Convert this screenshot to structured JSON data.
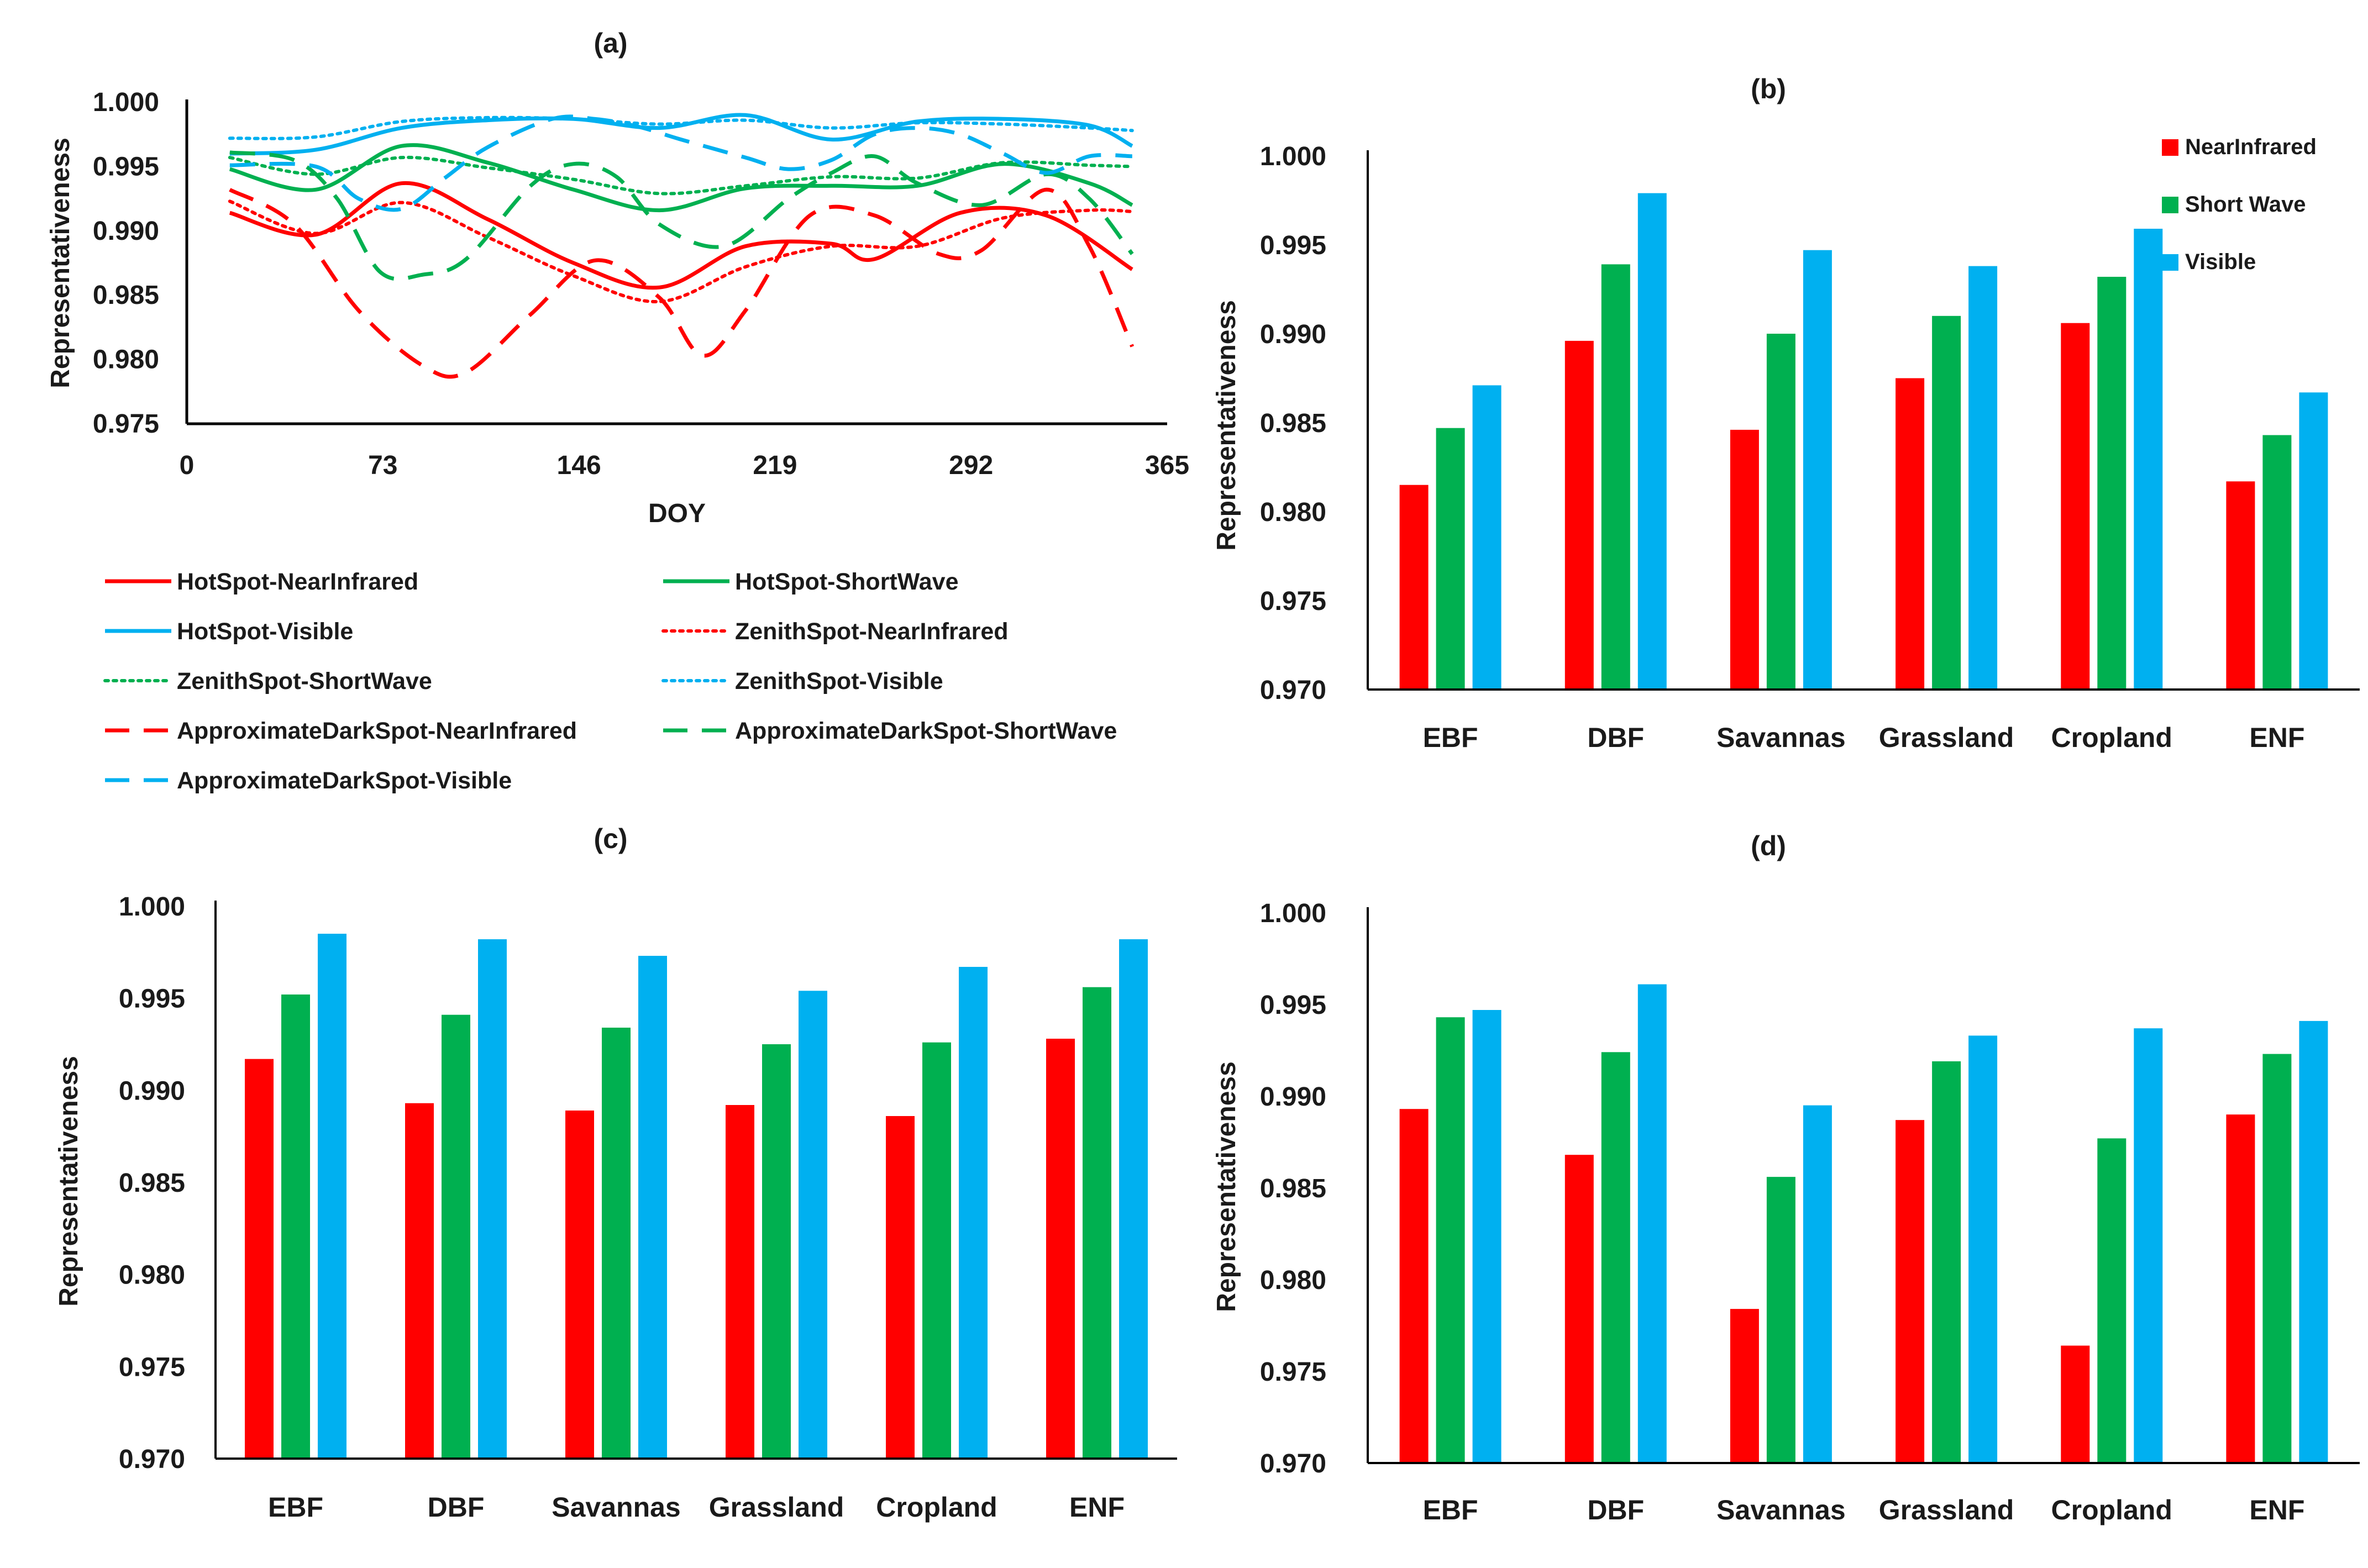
{
  "colors": {
    "near_infrared": "#ff0000",
    "short_wave": "#00b050",
    "visible": "#00b0f0",
    "axis": "#000000"
  },
  "chart_data": [
    {
      "id": "a",
      "type": "line",
      "title": "(a)",
      "xlabel": "DOY",
      "ylabel": "Representativeness",
      "xlim": [
        0,
        365
      ],
      "ylim": [
        0.975,
        1.0
      ],
      "xticks": [
        "0",
        "73",
        "146",
        "219",
        "292",
        "365"
      ],
      "yticks": [
        "0.975",
        "0.980",
        "0.985",
        "0.990",
        "0.995",
        "1.000"
      ],
      "series": [
        {
          "name": "HotSpot-NearInfrared",
          "color": "#ff0000",
          "style": "solid",
          "x": [
            16,
            48,
            80,
            112,
            144,
            176,
            208,
            240,
            256,
            288,
            320,
            352
          ],
          "y": [
            0.9914,
            0.9897,
            0.9937,
            0.9909,
            0.9875,
            0.9856,
            0.9888,
            0.989,
            0.9878,
            0.9914,
            0.9912,
            0.987
          ]
        },
        {
          "name": "HotSpot-ShortWave",
          "color": "#00b050",
          "style": "solid",
          "x": [
            16,
            48,
            80,
            112,
            144,
            176,
            208,
            240,
            272,
            304,
            336,
            352
          ],
          "y": [
            0.9948,
            0.9932,
            0.9966,
            0.9953,
            0.9932,
            0.9916,
            0.9933,
            0.9935,
            0.9935,
            0.9952,
            0.9937,
            0.992
          ]
        },
        {
          "name": "HotSpot-Visible",
          "color": "#00b0f0",
          "style": "solid",
          "x": [
            16,
            48,
            80,
            112,
            144,
            176,
            208,
            240,
            272,
            304,
            336,
            352
          ],
          "y": [
            0.996,
            0.9963,
            0.998,
            0.9986,
            0.9987,
            0.998,
            0.999,
            0.9971,
            0.9985,
            0.9987,
            0.9982,
            0.9966
          ]
        },
        {
          "name": "ZenithSpot-NearInfrared",
          "color": "#ff0000",
          "style": "dotted",
          "x": [
            16,
            48,
            80,
            112,
            144,
            176,
            208,
            240,
            272,
            304,
            336,
            352
          ],
          "y": [
            0.9923,
            0.9898,
            0.9922,
            0.9895,
            0.9865,
            0.9845,
            0.9872,
            0.9888,
            0.9888,
            0.991,
            0.9916,
            0.9915
          ]
        },
        {
          "name": "ZenithSpot-ShortWave",
          "color": "#00b050",
          "style": "dotted",
          "x": [
            16,
            48,
            80,
            112,
            144,
            176,
            208,
            240,
            272,
            304,
            336,
            352
          ],
          "y": [
            0.9957,
            0.9944,
            0.9957,
            0.9949,
            0.994,
            0.9929,
            0.9935,
            0.9942,
            0.9941,
            0.9953,
            0.9951,
            0.995
          ]
        },
        {
          "name": "ZenithSpot-Visible",
          "color": "#00b0f0",
          "style": "dotted",
          "x": [
            16,
            48,
            80,
            112,
            144,
            176,
            208,
            240,
            272,
            304,
            336,
            352
          ],
          "y": [
            0.9972,
            0.9973,
            0.9985,
            0.9988,
            0.9987,
            0.9983,
            0.9986,
            0.998,
            0.9984,
            0.9983,
            0.998,
            0.9978
          ]
        },
        {
          "name": "ApproximateDarkSpot-NearInfrared",
          "color": "#ff0000",
          "style": "dashed",
          "x": [
            16,
            40,
            64,
            88,
            104,
            128,
            152,
            176,
            192,
            208,
            232,
            256,
            280,
            296,
            320,
            336,
            352
          ],
          "y": [
            0.9932,
            0.9905,
            0.9838,
            0.9795,
            0.979,
            0.9835,
            0.9877,
            0.9848,
            0.9803,
            0.9838,
            0.9912,
            0.9912,
            0.9882,
            0.9885,
            0.9932,
            0.9888,
            0.981
          ]
        },
        {
          "name": "ApproximateDarkSpot-ShortWave",
          "color": "#00b050",
          "style": "dashed",
          "x": [
            16,
            40,
            56,
            72,
            88,
            104,
            128,
            144,
            160,
            176,
            200,
            224,
            240,
            256,
            272,
            296,
            320,
            336,
            352
          ],
          "y": [
            0.9961,
            0.9955,
            0.9925,
            0.9868,
            0.9866,
            0.9878,
            0.9935,
            0.9952,
            0.9942,
            0.9905,
            0.9888,
            0.9925,
            0.9945,
            0.9958,
            0.9937,
            0.992,
            0.9944,
            0.9925,
            0.9882
          ]
        },
        {
          "name": "ApproximateDarkSpot-Visible",
          "color": "#00b0f0",
          "style": "dashed",
          "x": [
            16,
            48,
            64,
            80,
            96,
            112,
            136,
            152,
            168,
            184,
            208,
            224,
            240,
            256,
            272,
            288,
            304,
            320,
            336,
            352
          ],
          "y": [
            0.9951,
            0.995,
            0.9925,
            0.9917,
            0.9941,
            0.9965,
            0.9987,
            0.9987,
            0.9981,
            0.9971,
            0.9957,
            0.9948,
            0.9955,
            0.9975,
            0.998,
            0.9975,
            0.996,
            0.9945,
            0.9958,
            0.9958
          ]
        }
      ]
    },
    {
      "id": "b",
      "type": "bar",
      "title": "(b)",
      "xlabel": "",
      "ylabel": "Representativeness",
      "ylim": [
        0.97,
        1.0
      ],
      "yticks": [
        "0.970",
        "0.975",
        "0.980",
        "0.985",
        "0.990",
        "0.995",
        "1.000"
      ],
      "categories": [
        "EBF",
        "DBF",
        "Savannas",
        "Grassland",
        "Cropland",
        "ENF"
      ],
      "legend": [
        "NearInfrared",
        "Short Wave",
        "Visible"
      ],
      "legend_position": "top-right",
      "series": [
        {
          "name": "NearInfrared",
          "color": "#ff0000",
          "values": [
            0.9815,
            0.9896,
            0.9846,
            0.9875,
            0.9906,
            0.9817
          ]
        },
        {
          "name": "Short Wave",
          "color": "#00b050",
          "values": [
            0.9847,
            0.9939,
            0.99,
            0.991,
            0.9932,
            0.9843
          ]
        },
        {
          "name": "Visible",
          "color": "#00b0f0",
          "values": [
            0.9871,
            0.9979,
            0.9947,
            0.9938,
            0.9959,
            0.9867
          ]
        }
      ]
    },
    {
      "id": "c",
      "type": "bar",
      "title": "(c)",
      "xlabel": "",
      "ylabel": "Representativeness",
      "ylim": [
        0.97,
        1.0
      ],
      "yticks": [
        "0.970",
        "0.975",
        "0.980",
        "0.985",
        "0.990",
        "0.995",
        "1.000"
      ],
      "categories": [
        "EBF",
        "DBF",
        "Savannas",
        "Grassland",
        "Cropland",
        "ENF"
      ],
      "series": [
        {
          "name": "NearInfrared",
          "color": "#ff0000",
          "values": [
            0.9917,
            0.9893,
            0.9889,
            0.9892,
            0.9886,
            0.9928
          ]
        },
        {
          "name": "Short Wave",
          "color": "#00b050",
          "values": [
            0.9952,
            0.9941,
            0.9934,
            0.9925,
            0.9926,
            0.9956
          ]
        },
        {
          "name": "Visible",
          "color": "#00b0f0",
          "values": [
            0.9985,
            0.9982,
            0.9973,
            0.9954,
            0.9967,
            0.9982
          ]
        }
      ]
    },
    {
      "id": "d",
      "type": "bar",
      "title": "(d)",
      "xlabel": "",
      "ylabel": "Representativeness",
      "ylim": [
        0.97,
        1.0
      ],
      "yticks": [
        "0.970",
        "0.975",
        "0.980",
        "0.985",
        "0.990",
        "0.995",
        "1.000"
      ],
      "categories": [
        "EBF",
        "DBF",
        "Savannas",
        "Grassland",
        "Cropland",
        "ENF"
      ],
      "series": [
        {
          "name": "NearInfrared",
          "color": "#ff0000",
          "values": [
            0.9893,
            0.9868,
            0.9784,
            0.9887,
            0.9764,
            0.989
          ]
        },
        {
          "name": "Short Wave",
          "color": "#00b050",
          "values": [
            0.9943,
            0.9924,
            0.9856,
            0.9919,
            0.9877,
            0.9923
          ]
        },
        {
          "name": "Visible",
          "color": "#00b0f0",
          "values": [
            0.9947,
            0.9961,
            0.9895,
            0.9933,
            0.9937,
            0.9941
          ]
        }
      ]
    }
  ]
}
